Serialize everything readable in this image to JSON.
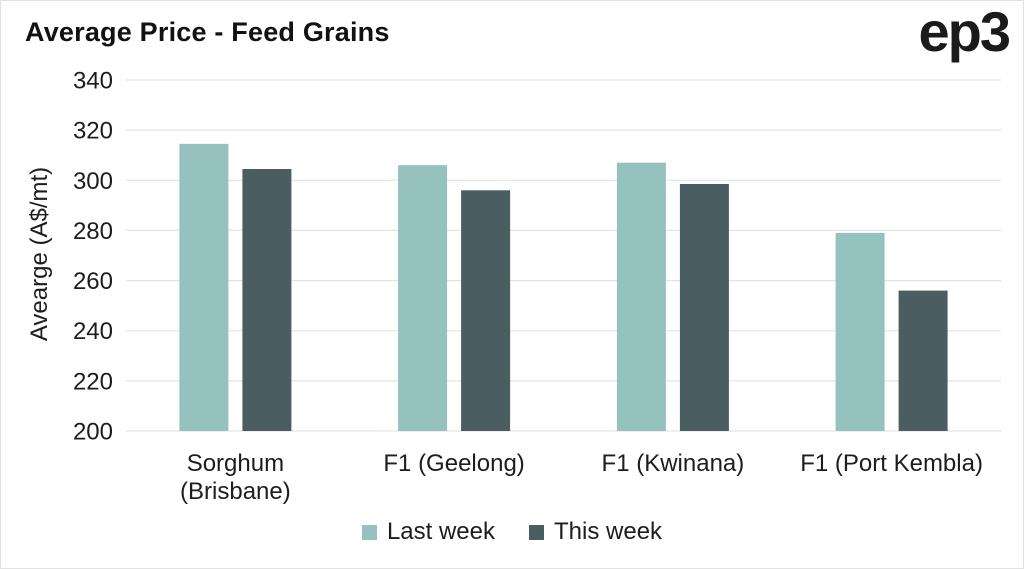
{
  "logo": {
    "text": "ep3"
  },
  "chart_data": {
    "type": "bar",
    "title": "Average Price - Feed Grains",
    "xlabel": "",
    "ylabel": "Avearge (A$/mt)",
    "ylim": [
      200,
      340
    ],
    "yticks": [
      200,
      220,
      240,
      260,
      280,
      300,
      320,
      340
    ],
    "grid": true,
    "legend_position": "bottom",
    "categories": [
      "Sorghum (Brisbane)",
      "F1 (Geelong)",
      "F1 (Kwinana)",
      "F1 (Port Kembla)"
    ],
    "category_label_lines": [
      [
        "Sorghum",
        "(Brisbane)"
      ],
      [
        "F1 (Geelong)"
      ],
      [
        "F1 (Kwinana)"
      ],
      [
        "F1 (Port Kembla)"
      ]
    ],
    "series": [
      {
        "name": "Last week",
        "color": "#95c2bf",
        "values": [
          314.5,
          306,
          307,
          279
        ]
      },
      {
        "name": "This week",
        "color": "#4a5d60",
        "values": [
          304.5,
          296,
          298.5,
          256
        ]
      }
    ],
    "colors": {
      "gridline": "#e4e4e4",
      "tick_text": "#1d1d1d",
      "title_text": "#121212"
    }
  }
}
